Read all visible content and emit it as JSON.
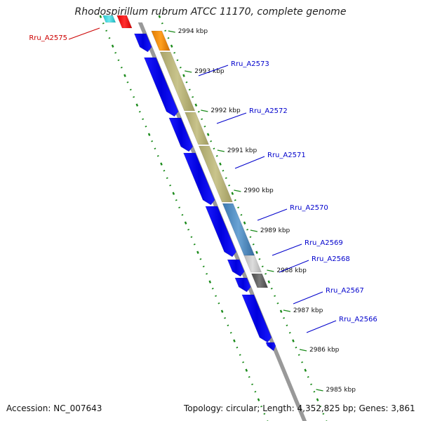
{
  "title": "Rhodospirillum rubrum ATCC 11170, complete genome",
  "accession_text": "Accession: NC_007643",
  "topology_text": "Topology: circular; Length: 4,352,825 bp; Genes: 3,861",
  "kbp_ticks": [
    "2994 kbp",
    "2993 kbp",
    "2992 kbp",
    "2991 kbp",
    "2990 kbp",
    "2989 kbp",
    "2988 kbp",
    "2987 kbp",
    "2986 kbp",
    "2985 kbp"
  ],
  "gene_labels": [
    {
      "text": "Rru_A2575",
      "color": "#cc0000"
    },
    {
      "text": "Rru_A2573",
      "color": "#0000cc"
    },
    {
      "text": "Rru_A2572",
      "color": "#0000cc"
    },
    {
      "text": "Rru_A2571",
      "color": "#0000cc"
    },
    {
      "text": "Rru_A2570",
      "color": "#0000cc"
    },
    {
      "text": "Rru_A2569",
      "color": "#0000cc"
    },
    {
      "text": "Rru_A2568",
      "color": "#0000cc"
    },
    {
      "text": "Rru_A2567",
      "color": "#0000cc"
    },
    {
      "text": "Rru_A2566",
      "color": "#0000cc"
    }
  ],
  "colors": {
    "backbone": "#999999",
    "gene_arrow": "#0000ee",
    "dots": "#1a8a1a",
    "label_red": "#cc0000",
    "label_blue": "#0000cc"
  }
}
